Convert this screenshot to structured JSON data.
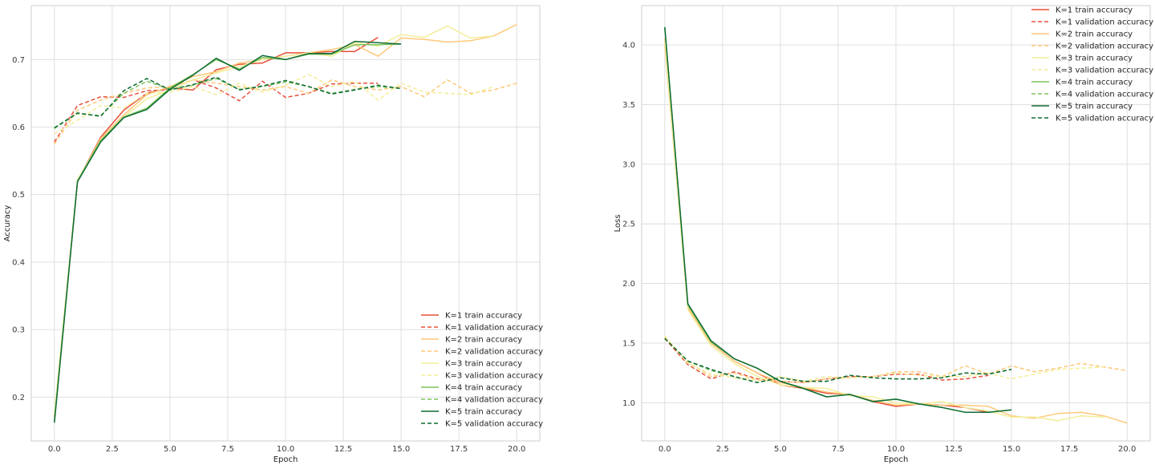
{
  "chart_data": [
    {
      "type": "line",
      "title": "",
      "xlabel": "Epoch",
      "ylabel": "Accuracy",
      "xlim": [
        -1,
        21
      ],
      "ylim": [
        0.135,
        0.78
      ],
      "xticks": [
        0,
        2.5,
        5,
        7.5,
        10,
        12.5,
        15,
        17.5,
        20
      ],
      "xtick_labels": [
        "0.0",
        "2.5",
        "5.0",
        "7.5",
        "10.0",
        "12.5",
        "15.0",
        "17.5",
        "20.0"
      ],
      "yticks": [
        0.2,
        0.3,
        0.4,
        0.5,
        0.6,
        0.7
      ],
      "ytick_labels": [
        "0.2",
        "0.3",
        "0.4",
        "0.5",
        "0.6",
        "0.7"
      ],
      "grid": true,
      "legend_position": "lower-right",
      "series": [
        {
          "name": "K=1 train accuracy",
          "color": "#e8503a",
          "dash": "solid",
          "x": [
            0,
            1,
            2,
            3,
            4,
            5,
            6,
            7,
            8,
            9,
            10,
            11,
            12,
            13,
            14
          ],
          "y": [
            0.17,
            0.52,
            0.585,
            0.625,
            0.65,
            0.658,
            0.655,
            0.685,
            0.693,
            0.695,
            0.71,
            0.71,
            0.712,
            0.712,
            0.733
          ]
        },
        {
          "name": "K=1 validation accuracy",
          "color": "#e8503a",
          "dash": "dashed",
          "x": [
            0,
            1,
            2,
            3,
            4,
            5,
            6,
            7,
            8,
            9,
            10,
            11,
            12,
            13,
            14
          ],
          "y": [
            0.578,
            0.632,
            0.645,
            0.644,
            0.654,
            0.655,
            0.67,
            0.658,
            0.639,
            0.668,
            0.644,
            0.65,
            0.664,
            0.665,
            0.665
          ]
        },
        {
          "name": "K=2 train accuracy",
          "color": "#fdc97a",
          "dash": "solid",
          "x": [
            0,
            1,
            2,
            3,
            4,
            5,
            6,
            7,
            8,
            9,
            10,
            11,
            12,
            13,
            14,
            15,
            16,
            17,
            18,
            19,
            20
          ],
          "y": [
            0.17,
            0.52,
            0.583,
            0.618,
            0.648,
            0.66,
            0.675,
            0.682,
            0.695,
            0.7,
            0.705,
            0.71,
            0.715,
            0.722,
            0.705,
            0.732,
            0.73,
            0.726,
            0.728,
            0.735,
            0.752
          ]
        },
        {
          "name": "K=2 validation accuracy",
          "color": "#fdc97a",
          "dash": "dashed",
          "x": [
            0,
            1,
            2,
            3,
            4,
            5,
            6,
            7,
            8,
            9,
            10,
            11,
            12,
            13,
            14,
            15,
            16,
            17,
            18,
            19,
            20
          ],
          "y": [
            0.575,
            0.625,
            0.64,
            0.65,
            0.658,
            0.66,
            0.67,
            0.665,
            0.66,
            0.655,
            0.66,
            0.65,
            0.67,
            0.66,
            0.655,
            0.66,
            0.645,
            0.67,
            0.65,
            0.655,
            0.665
          ]
        },
        {
          "name": "K=3 train accuracy",
          "color": "#f2ee9a",
          "dash": "solid",
          "x": [
            0,
            1,
            2,
            3,
            4,
            5,
            6,
            7,
            8,
            9,
            10,
            11,
            12,
            13,
            14,
            15,
            16,
            17,
            18,
            19
          ],
          "y": [
            0.175,
            0.522,
            0.58,
            0.615,
            0.642,
            0.655,
            0.67,
            0.68,
            0.69,
            0.7,
            0.705,
            0.71,
            0.705,
            0.725,
            0.72,
            0.737,
            0.733,
            0.75,
            0.732,
            0.735
          ]
        },
        {
          "name": "K=3 validation accuracy",
          "color": "#f2ee9a",
          "dash": "dashed",
          "x": [
            0,
            1,
            2,
            3,
            4,
            5,
            6,
            7,
            8,
            9,
            10,
            11,
            12,
            13,
            14,
            15,
            16,
            17,
            18,
            19
          ],
          "y": [
            0.59,
            0.61,
            0.632,
            0.628,
            0.65,
            0.652,
            0.66,
            0.648,
            0.665,
            0.652,
            0.662,
            0.678,
            0.66,
            0.668,
            0.64,
            0.665,
            0.652,
            0.65,
            0.648,
            0.66
          ]
        },
        {
          "name": "K=4 train accuracy",
          "color": "#7bc35d",
          "dash": "solid",
          "x": [
            0,
            1,
            2,
            3,
            4,
            5,
            6,
            7,
            8,
            9,
            10,
            11,
            12,
            13,
            14,
            15
          ],
          "y": [
            0.165,
            0.52,
            0.58,
            0.615,
            0.628,
            0.658,
            0.678,
            0.7,
            0.686,
            0.703,
            0.7,
            0.708,
            0.708,
            0.722,
            0.722,
            0.723
          ]
        },
        {
          "name": "K=4 validation accuracy",
          "color": "#7bc35d",
          "dash": "dashed",
          "x": [
            0,
            1,
            2,
            3,
            4,
            5,
            6,
            7,
            8,
            9,
            10,
            11,
            12,
            13,
            14,
            15
          ],
          "y": [
            0.598,
            0.62,
            0.617,
            0.65,
            0.668,
            0.656,
            0.662,
            0.672,
            0.656,
            0.66,
            0.667,
            0.66,
            0.65,
            0.656,
            0.66,
            0.657
          ]
        },
        {
          "name": "K=5 train accuracy",
          "color": "#0e6b34",
          "dash": "solid",
          "x": [
            0,
            1,
            2,
            3,
            4,
            5,
            6,
            7,
            8,
            9,
            10,
            11,
            12,
            13,
            14,
            15
          ],
          "y": [
            0.162,
            0.519,
            0.578,
            0.614,
            0.626,
            0.656,
            0.677,
            0.702,
            0.684,
            0.706,
            0.7,
            0.709,
            0.709,
            0.727,
            0.725,
            0.723
          ]
        },
        {
          "name": "K=5 validation accuracy",
          "color": "#0e6b34",
          "dash": "dashed",
          "x": [
            0,
            1,
            2,
            3,
            4,
            5,
            6,
            7,
            8,
            9,
            10,
            11,
            12,
            13,
            14,
            15
          ],
          "y": [
            0.599,
            0.621,
            0.616,
            0.654,
            0.672,
            0.655,
            0.663,
            0.674,
            0.655,
            0.661,
            0.669,
            0.66,
            0.649,
            0.655,
            0.662,
            0.657
          ]
        }
      ]
    },
    {
      "type": "line",
      "title": "",
      "xlabel": "Epoch",
      "ylabel": "Loss",
      "xlim": [
        -1,
        21
      ],
      "ylim": [
        0.68,
        4.33
      ],
      "xticks": [
        0,
        2.5,
        5,
        7.5,
        10,
        12.5,
        15,
        17.5,
        20
      ],
      "xtick_labels": [
        "0.0",
        "2.5",
        "5.0",
        "7.5",
        "10.0",
        "12.5",
        "15.0",
        "17.5",
        "20.0"
      ],
      "yticks": [
        1.0,
        1.5,
        2.0,
        2.5,
        3.0,
        3.5,
        4.0
      ],
      "ytick_labels": [
        "1.0",
        "1.5",
        "2.0",
        "2.5",
        "3.0",
        "3.5",
        "4.0"
      ],
      "grid": true,
      "legend_position": "upper-right",
      "series": [
        {
          "name": "K=1 train accuracy",
          "color": "#e8503a",
          "dash": "solid",
          "x": [
            0,
            1,
            2,
            3,
            4,
            5,
            6,
            7,
            8,
            9,
            10,
            11,
            12,
            13,
            14
          ],
          "y": [
            4.05,
            1.8,
            1.5,
            1.35,
            1.25,
            1.15,
            1.12,
            1.08,
            1.07,
            1.01,
            0.97,
            0.99,
            0.98,
            0.96,
            0.92
          ]
        },
        {
          "name": "K=1 validation accuracy",
          "color": "#e8503a",
          "dash": "dashed",
          "x": [
            0,
            1,
            2,
            3,
            4,
            5,
            6,
            7,
            8,
            9,
            10,
            11,
            12,
            13,
            14
          ],
          "y": [
            1.54,
            1.32,
            1.2,
            1.26,
            1.2,
            1.18,
            1.17,
            1.2,
            1.22,
            1.22,
            1.24,
            1.24,
            1.19,
            1.2,
            1.23
          ]
        },
        {
          "name": "K=2 train accuracy",
          "color": "#fdc97a",
          "dash": "solid",
          "x": [
            0,
            1,
            2,
            3,
            4,
            5,
            6,
            7,
            8,
            9,
            10,
            11,
            12,
            13,
            14,
            15,
            16,
            17,
            18,
            19,
            20
          ],
          "y": [
            4.0,
            1.8,
            1.5,
            1.35,
            1.25,
            1.17,
            1.13,
            1.09,
            1.07,
            1.02,
            0.98,
            0.99,
            0.98,
            0.98,
            0.97,
            0.89,
            0.87,
            0.91,
            0.92,
            0.89,
            0.83
          ]
        },
        {
          "name": "K=2 validation accuracy",
          "color": "#fdc97a",
          "dash": "dashed",
          "x": [
            0,
            1,
            2,
            3,
            4,
            5,
            6,
            7,
            8,
            9,
            10,
            11,
            12,
            13,
            14,
            15,
            16,
            17,
            18,
            19,
            20
          ],
          "y": [
            1.55,
            1.34,
            1.22,
            1.25,
            1.19,
            1.18,
            1.17,
            1.2,
            1.21,
            1.22,
            1.26,
            1.26,
            1.22,
            1.31,
            1.24,
            1.31,
            1.26,
            1.29,
            1.33,
            1.3,
            1.27
          ]
        },
        {
          "name": "K=3 train accuracy",
          "color": "#f2ee9a",
          "dash": "solid",
          "x": [
            0,
            1,
            2,
            3,
            4,
            5,
            6,
            7,
            8,
            9,
            10,
            11,
            12,
            13,
            14,
            15,
            16,
            17,
            18,
            19
          ],
          "y": [
            4.05,
            1.78,
            1.48,
            1.33,
            1.22,
            1.15,
            1.13,
            1.12,
            1.06,
            1.05,
            1.0,
            0.99,
            1.01,
            0.96,
            0.93,
            0.88,
            0.88,
            0.85,
            0.89,
            0.88
          ]
        },
        {
          "name": "K=3 validation accuracy",
          "color": "#f2ee9a",
          "dash": "dashed",
          "x": [
            0,
            1,
            2,
            3,
            4,
            5,
            6,
            7,
            8,
            9,
            10,
            11,
            12,
            13,
            14,
            15,
            16,
            17,
            18,
            19
          ],
          "y": [
            1.56,
            1.33,
            1.24,
            1.21,
            1.19,
            1.22,
            1.18,
            1.22,
            1.21,
            1.22,
            1.25,
            1.23,
            1.22,
            1.22,
            1.25,
            1.2,
            1.24,
            1.28,
            1.29,
            1.3
          ]
        },
        {
          "name": "K=4 train accuracy",
          "color": "#7bc35d",
          "dash": "solid",
          "x": [
            0,
            1,
            2,
            3,
            4,
            5,
            6,
            7,
            8,
            9,
            10,
            11,
            12,
            13,
            14,
            15
          ],
          "y": [
            4.15,
            1.82,
            1.51,
            1.37,
            1.29,
            1.18,
            1.12,
            1.05,
            1.07,
            1.01,
            1.03,
            0.99,
            0.96,
            0.92,
            0.92,
            0.94
          ]
        },
        {
          "name": "K=4 validation accuracy",
          "color": "#7bc35d",
          "dash": "dashed",
          "x": [
            0,
            1,
            2,
            3,
            4,
            5,
            6,
            7,
            8,
            9,
            10,
            11,
            12,
            13,
            14,
            15
          ],
          "y": [
            1.54,
            1.35,
            1.27,
            1.22,
            1.17,
            1.21,
            1.18,
            1.18,
            1.23,
            1.21,
            1.2,
            1.2,
            1.21,
            1.25,
            1.24,
            1.28
          ]
        },
        {
          "name": "K=5 train accuracy",
          "color": "#0e6b34",
          "dash": "solid",
          "x": [
            0,
            1,
            2,
            3,
            4,
            5,
            6,
            7,
            8,
            9,
            10,
            11,
            12,
            13,
            14,
            15
          ],
          "y": [
            4.15,
            1.83,
            1.52,
            1.37,
            1.29,
            1.18,
            1.12,
            1.05,
            1.07,
            1.01,
            1.03,
            0.99,
            0.96,
            0.92,
            0.92,
            0.94
          ]
        },
        {
          "name": "K=5 validation accuracy",
          "color": "#0e6b34",
          "dash": "dashed",
          "x": [
            0,
            1,
            2,
            3,
            4,
            5,
            6,
            7,
            8,
            9,
            10,
            11,
            12,
            13,
            14,
            15
          ],
          "y": [
            1.54,
            1.35,
            1.28,
            1.22,
            1.17,
            1.21,
            1.18,
            1.18,
            1.23,
            1.21,
            1.2,
            1.2,
            1.21,
            1.25,
            1.24,
            1.28
          ]
        }
      ]
    }
  ]
}
